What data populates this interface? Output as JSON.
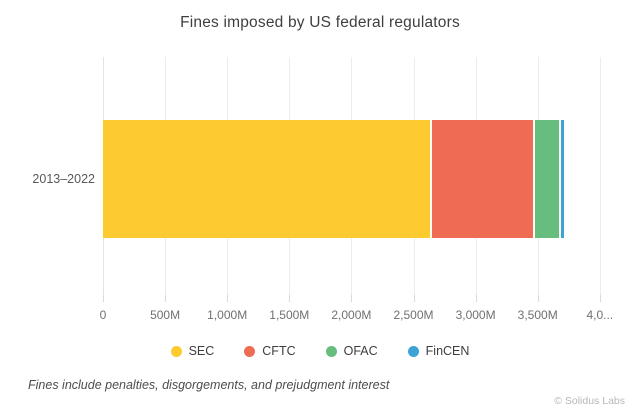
{
  "title": "Fines imposed by US federal regulators",
  "footnote": "Fines include penalties, disgorgements, and prejudgment interest",
  "copyright": "© Solidus Labs",
  "category_label": "2013–2022",
  "chart_data": {
    "type": "bar",
    "orientation": "horizontal",
    "stacked": true,
    "title": "Fines imposed by US federal regulators",
    "categories": [
      "2013–2022"
    ],
    "unit": "USD millions",
    "series": [
      {
        "name": "SEC",
        "color": "#fdcb2f",
        "values": [
          2650
        ]
      },
      {
        "name": "CFTC",
        "color": "#ee6c53",
        "values": [
          825
        ]
      },
      {
        "name": "OFAC",
        "color": "#66bd7e",
        "values": [
          210
        ]
      },
      {
        "name": "FinCEN",
        "color": "#3da3d5",
        "values": [
          25
        ]
      }
    ],
    "xlim": [
      0,
      4325
    ],
    "x_ticks": [
      {
        "value": 0,
        "label": "0"
      },
      {
        "value": 500,
        "label": "500M"
      },
      {
        "value": 1000,
        "label": "1,000M"
      },
      {
        "value": 1500,
        "label": "1,500M"
      },
      {
        "value": 2000,
        "label": "2,000M"
      },
      {
        "value": 2500,
        "label": "2,500M"
      },
      {
        "value": 3000,
        "label": "3,000M"
      },
      {
        "value": 3500,
        "label": "3,500M"
      },
      {
        "value": 4000,
        "label": "4,0..."
      }
    ],
    "grid": true,
    "legend_position": "bottom",
    "annotation": "Fines include penalties, disgorgements, and prejudgment interest"
  }
}
